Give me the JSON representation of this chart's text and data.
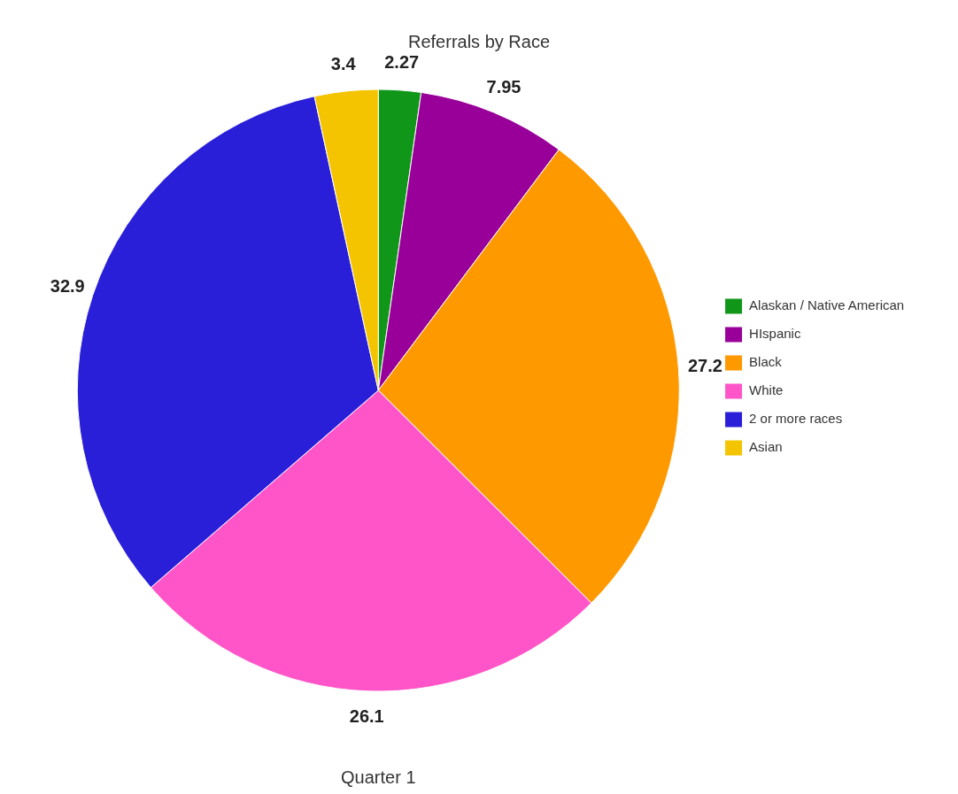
{
  "chart_data": {
    "type": "pie",
    "title": "Referrals by Race",
    "xlabel": "Quarter 1",
    "categories": [
      "Alaskan / Native American",
      "HIspanic",
      "Black",
      "White",
      "2 or more races",
      "Asian"
    ],
    "values": [
      2.27,
      7.95,
      27.2,
      26.1,
      32.9,
      3.4
    ],
    "colors": [
      "#109618",
      "#990099",
      "#ff9900",
      "#ff55c8",
      "#2a1fd8",
      "#f5c400"
    ],
    "data_labels": true,
    "legend": "right"
  }
}
